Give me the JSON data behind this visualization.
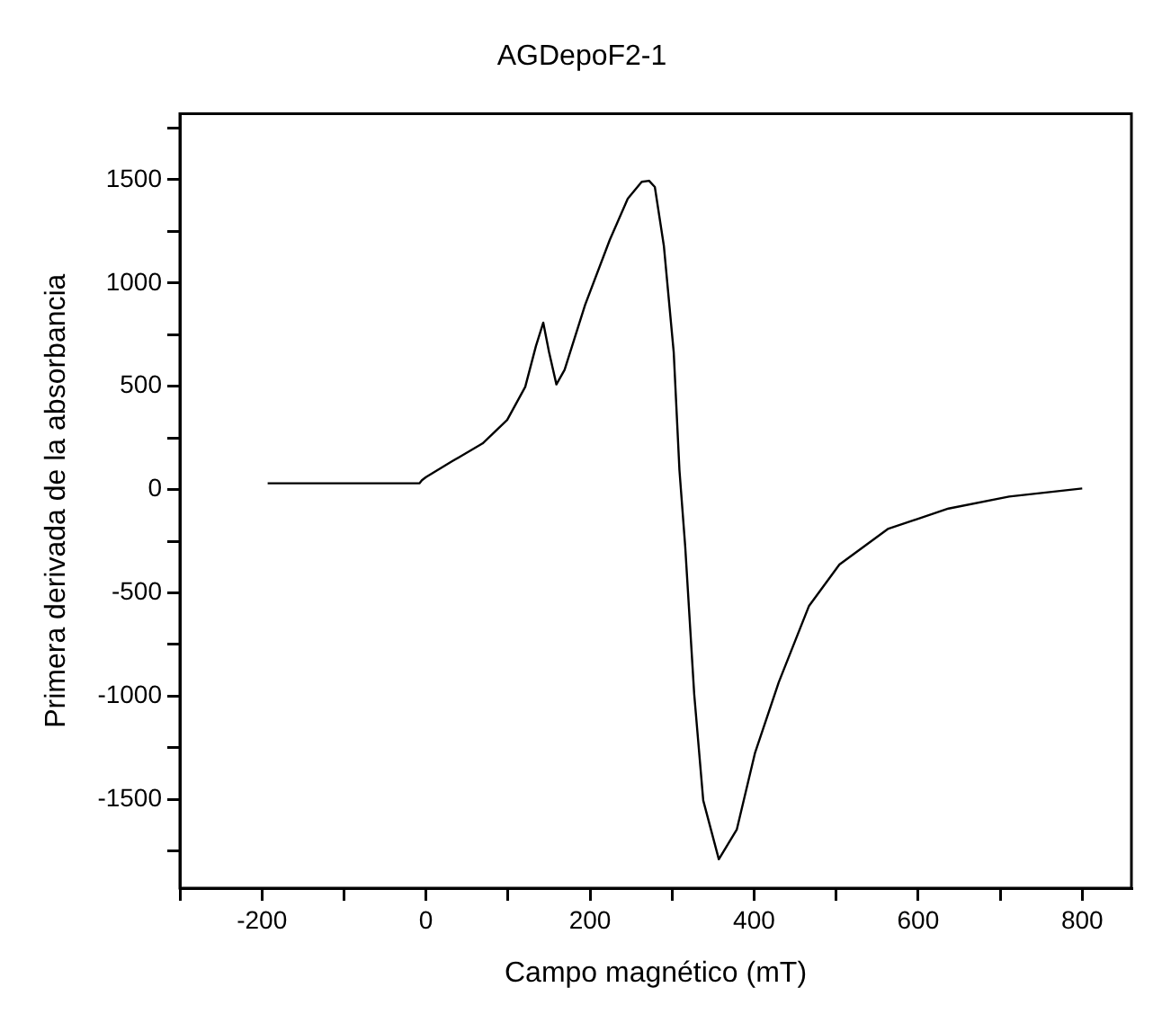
{
  "chart_data": {
    "type": "line",
    "title": "AGDepoF2-1",
    "xlabel": "Campo magnético (mT)",
    "ylabel": "Primera derivada de la absorbancia",
    "series": [
      {
        "color": "#000000",
        "x": [
          -193,
          -150,
          -100,
          -50,
          -8,
          -5,
          0,
          32,
          69,
          99,
          121,
          134,
          143,
          150,
          159,
          169,
          194,
          224,
          246,
          263,
          272,
          279,
          290,
          302,
          309,
          316,
          327,
          338,
          357,
          379,
          401,
          430,
          467,
          504,
          563,
          637,
          711,
          800
        ],
        "values": [
          30,
          30,
          30,
          30,
          30,
          45,
          60,
          137,
          223,
          337,
          497,
          694,
          808,
          666,
          509,
          580,
          894,
          1208,
          1408,
          1490,
          1495,
          1465,
          1180,
          666,
          94,
          -274,
          -991,
          -1505,
          -1790,
          -1645,
          -1277,
          -934,
          -563,
          -363,
          -191,
          -92,
          -34,
          5
        ]
      }
    ],
    "xlim": [
      -300,
      860
    ],
    "ylim": [
      -1930,
      1820
    ],
    "xticks": [
      {
        "value": -300,
        "label": null
      },
      -200,
      {
        "value": -100,
        "label": null
      },
      0,
      {
        "value": 100,
        "label": null
      },
      200,
      {
        "value": 300,
        "label": null
      },
      400,
      {
        "value": 500,
        "label": null
      },
      600,
      {
        "value": 700,
        "label": null
      },
      800
    ],
    "yticks": [
      {
        "value": -1750,
        "label": null
      },
      -1500,
      {
        "value": -1250,
        "label": null
      },
      -1000,
      {
        "value": -750,
        "label": null
      },
      -500,
      {
        "value": -250,
        "label": null
      },
      0,
      {
        "value": 250,
        "label": null
      },
      500,
      {
        "value": 750,
        "label": null
      },
      1000,
      {
        "value": 1250,
        "label": null
      },
      1500,
      {
        "value": 1750,
        "label": null
      }
    ],
    "grid": false,
    "legend": false,
    "marker": "none",
    "line_style": "solid"
  }
}
